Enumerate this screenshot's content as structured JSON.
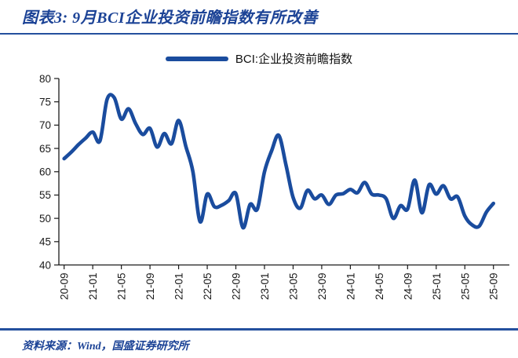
{
  "figure": {
    "title": "图表3: 9月BCI企业投资前瞻指数有所改善",
    "source": "资料来源：Wind，国盛证券研究所"
  },
  "colors": {
    "line": "#1A4C9E",
    "title_text": "#1C4396",
    "divider": "#24509E",
    "axis": "#1A1A1A"
  },
  "chart_data": {
    "type": "line",
    "title": "图表3: 9月BCI企业投资前瞻指数有所改善",
    "legend": "BCI:企业投资前瞻指数",
    "legend_position": "top-center",
    "grid": false,
    "ylim": [
      40,
      80
    ],
    "ytick_step": 5,
    "x_tick_every": 4,
    "x_tick_labels": [
      "20-09",
      "21-01",
      "21-05",
      "21-09",
      "22-01",
      "22-05",
      "22-09",
      "23-01",
      "23-05",
      "23-09",
      "24-01",
      "24-05",
      "24-09",
      "25-01",
      "25-05",
      "25-09"
    ],
    "x": [
      "20-09",
      "20-10",
      "20-11",
      "20-12",
      "21-01",
      "21-02",
      "21-03",
      "21-04",
      "21-05",
      "21-06",
      "21-07",
      "21-08",
      "21-09",
      "21-10",
      "21-11",
      "21-12",
      "22-01",
      "22-02",
      "22-03",
      "22-04",
      "22-05",
      "22-06",
      "22-07",
      "22-08",
      "22-09",
      "22-10",
      "22-11",
      "22-12",
      "23-01",
      "23-02",
      "23-03",
      "23-04",
      "23-05",
      "23-06",
      "23-07",
      "23-08",
      "23-09",
      "23-10",
      "23-11",
      "23-12",
      "24-01",
      "24-02",
      "24-03",
      "24-04",
      "24-05",
      "24-06",
      "24-07",
      "24-08",
      "24-09",
      "24-10",
      "24-11",
      "24-12",
      "25-01",
      "25-02",
      "25-03",
      "25-04",
      "25-05",
      "25-06",
      "25-07",
      "25-08",
      "25-09"
    ],
    "series": [
      {
        "name": "BCI:企业投资前瞻指数",
        "color": "#1A4C9E",
        "values": [
          62.8,
          64.2,
          65.8,
          67.2,
          68.5,
          66.6,
          75.5,
          75.9,
          71.3,
          73.5,
          70.3,
          68.0,
          69.3,
          65.3,
          68.2,
          66.0,
          71.0,
          65.5,
          60.0,
          49.3,
          55.2,
          52.5,
          52.8,
          53.8,
          55.3,
          48.0,
          53.0,
          52.0,
          60.0,
          64.5,
          67.8,
          61.5,
          54.5,
          52.2,
          56.0,
          54.2,
          55.0,
          53.0,
          55.0,
          55.3,
          56.2,
          55.5,
          57.7,
          55.2,
          55.0,
          54.2,
          50.0,
          52.7,
          52.0,
          58.2,
          51.2,
          57.2,
          55.2,
          57.0,
          54.2,
          54.6,
          50.5,
          48.6,
          48.3,
          51.3,
          53.2
        ]
      }
    ]
  }
}
